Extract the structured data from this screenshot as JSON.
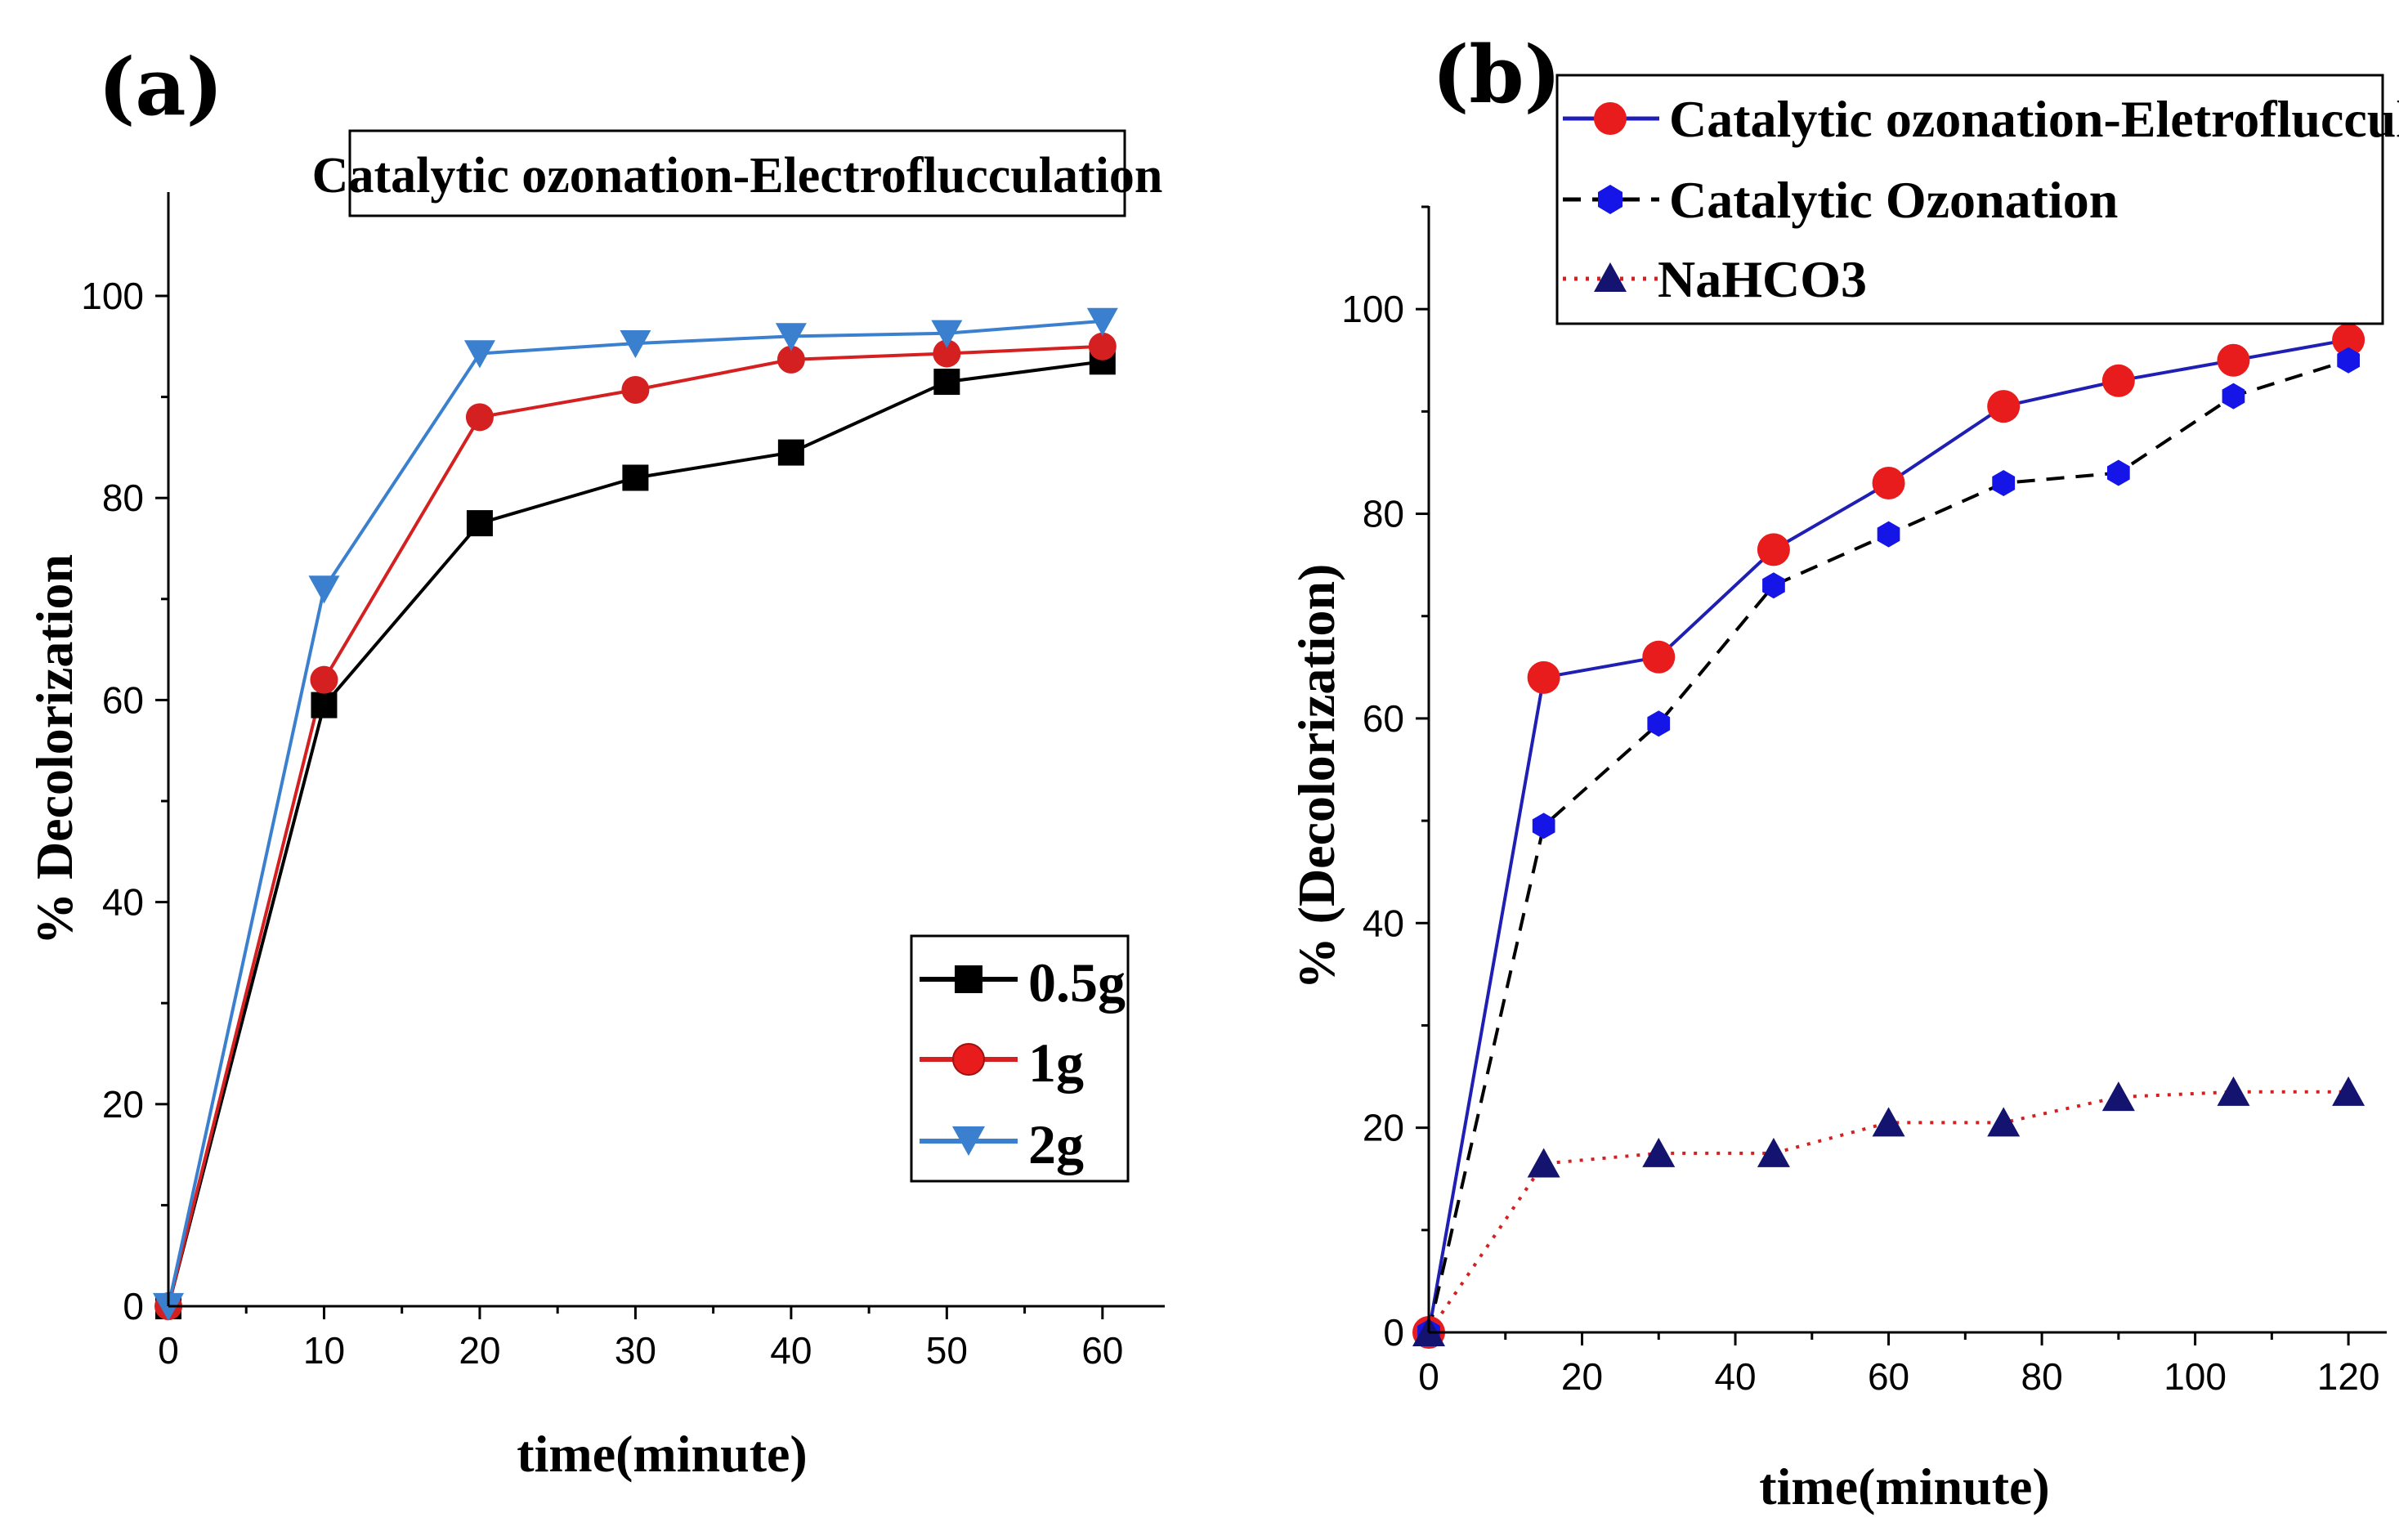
{
  "chart_data": [
    {
      "panel_label": "(a)",
      "type": "line",
      "title": "Catalytic ozonation-Electroflucculation",
      "xlabel": "time(minute)",
      "ylabel": "% Decolorization",
      "xlim": [
        0,
        64
      ],
      "ylim": [
        0,
        100
      ],
      "xticks": [
        0,
        10,
        20,
        30,
        40,
        50,
        60
      ],
      "yticks": [
        0,
        20,
        40,
        60,
        80,
        100
      ],
      "x": [
        0,
        10,
        20,
        30,
        40,
        50,
        60
      ],
      "legend_position": "bottom-right",
      "series": [
        {
          "name": "0.5g",
          "color": "#000000",
          "marker": "square",
          "line": "solid",
          "values": [
            0,
            59.5,
            77.5,
            82,
            84.5,
            91.5,
            93.5
          ]
        },
        {
          "name": "1g",
          "color": "#d42020",
          "marker": "circle",
          "line": "solid",
          "values": [
            0,
            62,
            88,
            90.7,
            93.7,
            94.3,
            95
          ]
        },
        {
          "name": "2g",
          "color": "#3b7fcf",
          "marker": "triangle-down",
          "line": "solid",
          "values": [
            0,
            71,
            94.3,
            95.3,
            96,
            96.3,
            97.5
          ]
        }
      ]
    },
    {
      "panel_label": "(b)",
      "type": "line",
      "title": "",
      "xlabel": "time(minute)",
      "ylabel": "% (Decolorization)",
      "xlim": [
        0,
        125
      ],
      "ylim": [
        0,
        110
      ],
      "xticks": [
        0,
        20,
        40,
        60,
        80,
        100,
        120
      ],
      "yticks": [
        0,
        20,
        40,
        60,
        80,
        100
      ],
      "x": [
        0,
        15,
        30,
        45,
        60,
        75,
        90,
        105,
        120
      ],
      "legend_position": "top-right",
      "series": [
        {
          "name": "Catalytic ozonation-Eletroflucculation",
          "color": "#1f1fb4",
          "marker_color": "#e81c1c",
          "marker": "circle",
          "line": "solid",
          "values": [
            0,
            64,
            66,
            76.5,
            83,
            90.5,
            93,
            95,
            97
          ]
        },
        {
          "name": "Catalytic Ozonation",
          "color": "#000000",
          "marker_color": "#1515e8",
          "marker": "hexagon",
          "line": "dashed",
          "values": [
            0,
            49.5,
            59.5,
            73,
            78,
            83,
            84,
            91.5,
            95
          ]
        },
        {
          "name": "NaHCO3",
          "color": "#d42020",
          "marker_color": "#141470",
          "marker": "triangle-up",
          "line": "dotted",
          "values": [
            0,
            16.5,
            17.5,
            17.5,
            20.5,
            20.5,
            23,
            23.5,
            23.5
          ]
        }
      ]
    }
  ]
}
